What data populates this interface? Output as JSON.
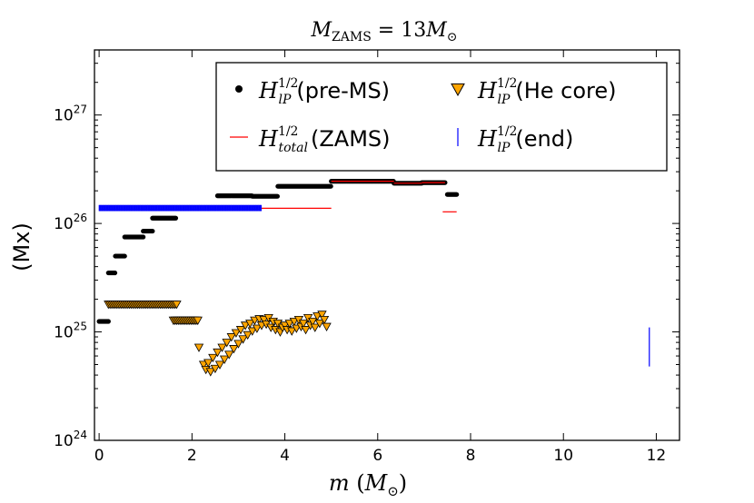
{
  "chart_data": {
    "type": "scatter",
    "title": "M_ZAMS = 13 M_⊙",
    "xlabel": "m (M_⊙)",
    "ylabel": "(Mx)",
    "xlim": [
      -0.1,
      12.5
    ],
    "ylim_log10": [
      24,
      27.6
    ],
    "yscale": "log",
    "grid": false,
    "legend_position": "top-right",
    "x_ticks": [
      {
        "value": 0,
        "label": "0"
      },
      {
        "value": 2,
        "label": "2"
      },
      {
        "value": 4,
        "label": "4"
      },
      {
        "value": 6,
        "label": "6"
      },
      {
        "value": 8,
        "label": "8"
      },
      {
        "value": 10,
        "label": "10"
      },
      {
        "value": 12,
        "label": "12"
      }
    ],
    "y_ticks": [
      {
        "exp": 24,
        "base": "10",
        "sup": "24"
      },
      {
        "exp": 25,
        "base": "10",
        "sup": "25"
      },
      {
        "exp": 26,
        "base": "10",
        "sup": "26"
      },
      {
        "exp": 27,
        "base": "10",
        "sup": "27"
      }
    ],
    "series": [
      {
        "name": "H_lP^1/2 (pre-MS)",
        "marker": "dot",
        "color": "#000000",
        "segments": [
          {
            "x0": 0.0,
            "x1": 0.2,
            "y": 1.25e+25
          },
          {
            "x0": 0.2,
            "x1": 0.35,
            "y": 3.5e+25
          },
          {
            "x0": 0.35,
            "x1": 0.55,
            "y": 5e+25
          },
          {
            "x0": 0.55,
            "x1": 0.95,
            "y": 7.5e+25
          },
          {
            "x0": 0.95,
            "x1": 1.15,
            "y": 8.5e+25
          },
          {
            "x0": 1.15,
            "x1": 1.65,
            "y": 1.12e+26
          },
          {
            "x0": 2.55,
            "x1": 3.3,
            "y": 1.8e+26
          },
          {
            "x0": 3.3,
            "x1": 3.85,
            "y": 1.78e+26
          },
          {
            "x0": 3.85,
            "x1": 5.0,
            "y": 2.2e+26
          },
          {
            "x0": 5.0,
            "x1": 6.35,
            "y": 2.45e+26
          },
          {
            "x0": 6.35,
            "x1": 6.95,
            "y": 2.35e+26
          },
          {
            "x0": 6.95,
            "x1": 7.45,
            "y": 2.38e+26
          },
          {
            "x0": 7.5,
            "x1": 7.7,
            "y": 1.85e+26
          }
        ]
      },
      {
        "name": "H_lP^1/2 (He core)",
        "marker": "triangle-down",
        "color": "#ffa500",
        "flat_segments": [
          {
            "x0": 0.2,
            "x1": 1.7,
            "y": 1.8e+25
          },
          {
            "x0": 1.6,
            "x1": 2.15,
            "y": 1.28e+25
          }
        ],
        "points": [
          {
            "x": 2.15,
            "y": 7.2e+24
          },
          {
            "x": 2.25,
            "y": 5e+24
          },
          {
            "x": 2.3,
            "y": 4.5e+24
          },
          {
            "x": 2.35,
            "y": 5.2e+24
          },
          {
            "x": 2.4,
            "y": 4.3e+24
          },
          {
            "x": 2.45,
            "y": 5.8e+24
          },
          {
            "x": 2.5,
            "y": 4.6e+24
          },
          {
            "x": 2.55,
            "y": 6.5e+24
          },
          {
            "x": 2.6,
            "y": 5e+24
          },
          {
            "x": 2.65,
            "y": 7.2e+24
          },
          {
            "x": 2.7,
            "y": 5.6e+24
          },
          {
            "x": 2.75,
            "y": 8e+24
          },
          {
            "x": 2.8,
            "y": 6.2e+24
          },
          {
            "x": 2.85,
            "y": 9e+24
          },
          {
            "x": 2.9,
            "y": 7e+24
          },
          {
            "x": 2.95,
            "y": 9.8e+24
          },
          {
            "x": 3.0,
            "y": 7.8e+24
          },
          {
            "x": 3.05,
            "y": 1.05e+25
          },
          {
            "x": 3.1,
            "y": 8.6e+24
          },
          {
            "x": 3.15,
            "y": 1.15e+25
          },
          {
            "x": 3.2,
            "y": 9.4e+24
          },
          {
            "x": 3.25,
            "y": 1.2e+25
          },
          {
            "x": 3.3,
            "y": 1.02e+25
          },
          {
            "x": 3.35,
            "y": 1.28e+25
          },
          {
            "x": 3.4,
            "y": 1.08e+25
          },
          {
            "x": 3.45,
            "y": 1.32e+25
          },
          {
            "x": 3.5,
            "y": 1.15e+25
          },
          {
            "x": 3.55,
            "y": 1.3e+25
          },
          {
            "x": 3.6,
            "y": 1.18e+25
          },
          {
            "x": 3.65,
            "y": 1.35e+25
          },
          {
            "x": 3.7,
            "y": 1.1e+25
          },
          {
            "x": 3.75,
            "y": 1.25e+25
          },
          {
            "x": 3.8,
            "y": 1.05e+25
          },
          {
            "x": 3.85,
            "y": 1.2e+25
          },
          {
            "x": 3.9,
            "y": 1e+25
          },
          {
            "x": 3.95,
            "y": 1.1e+25
          },
          {
            "x": 4.0,
            "y": 1.15e+25
          },
          {
            "x": 4.05,
            "y": 1.05e+25
          },
          {
            "x": 4.1,
            "y": 1.2e+25
          },
          {
            "x": 4.15,
            "y": 1.02e+25
          },
          {
            "x": 4.2,
            "y": 1.25e+25
          },
          {
            "x": 4.25,
            "y": 1.08e+25
          },
          {
            "x": 4.3,
            "y": 1.3e+25
          },
          {
            "x": 4.35,
            "y": 1.12e+25
          },
          {
            "x": 4.4,
            "y": 1.2e+25
          },
          {
            "x": 4.45,
            "y": 1.05e+25
          },
          {
            "x": 4.5,
            "y": 1.35e+25
          },
          {
            "x": 4.55,
            "y": 1.15e+25
          },
          {
            "x": 4.6,
            "y": 1.25e+25
          },
          {
            "x": 4.65,
            "y": 1.1e+25
          },
          {
            "x": 4.7,
            "y": 1.4e+25
          },
          {
            "x": 4.75,
            "y": 1.2e+25
          },
          {
            "x": 4.8,
            "y": 1.45e+25
          },
          {
            "x": 4.85,
            "y": 1.3e+25
          },
          {
            "x": 4.9,
            "y": 1.12e+25
          }
        ]
      },
      {
        "name": "H_total^1/2 (ZAMS)",
        "marker": "hline",
        "color": "#ff0000",
        "segments": [
          {
            "x0": 3.5,
            "x1": 5.0,
            "y": 1.38e+26
          },
          {
            "x0": 5.0,
            "x1": 6.35,
            "y": 2.45e+26
          },
          {
            "x0": 6.35,
            "x1": 6.95,
            "y": 2.35e+26
          },
          {
            "x0": 6.95,
            "x1": 7.45,
            "y": 2.38e+26
          },
          {
            "x0": 7.4,
            "x1": 7.7,
            "y": 1.28e+26
          }
        ]
      },
      {
        "name": "H_lP^1/2 (end)",
        "marker": "vline",
        "color": "#0000ff",
        "band": {
          "x0": 0.0,
          "x1": 3.5,
          "y_low": 1.3e+26,
          "y_high": 1.48e+26
        },
        "points": [
          {
            "x": 11.85,
            "y_low": 4.8e+24,
            "y_high": 1.1e+25
          }
        ]
      }
    ],
    "legend": [
      {
        "marker": "dot",
        "math": "H",
        "sub": "lP",
        "sup": "1/2",
        "label": "(pre-MS)"
      },
      {
        "marker": "triangle-down",
        "math": "H",
        "sub": "lP",
        "sup": "1/2",
        "label": "(He core)"
      },
      {
        "marker": "hline",
        "math": "H",
        "sub": "total",
        "sup": "1/2",
        "label": "(ZAMS)"
      },
      {
        "marker": "vline",
        "math": "H",
        "sub": "lP",
        "sup": "1/2",
        "label": "(end)"
      }
    ]
  }
}
